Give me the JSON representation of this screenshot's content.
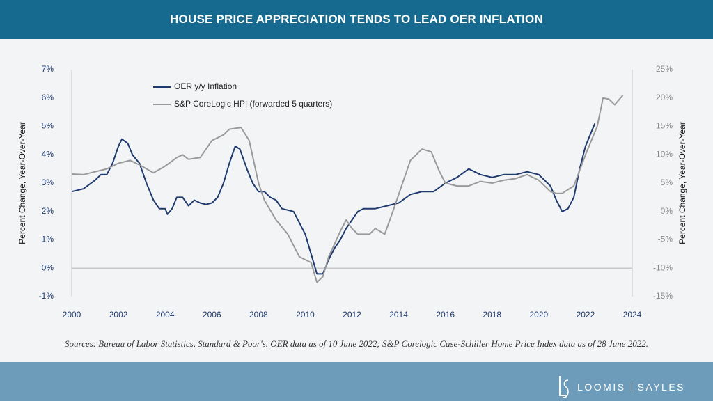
{
  "chart_data": {
    "type": "line",
    "title": "HOUSE PRICE APPRECIATION TENDS TO LEAD OER INFLATION",
    "ylabel": "Percent Change, Year-Over-Year",
    "y2label": "Percent Change, Year-Over-Year",
    "xlim": [
      2000,
      2024
    ],
    "xticks": [
      2000,
      2002,
      2004,
      2006,
      2008,
      2010,
      2012,
      2014,
      2016,
      2018,
      2020,
      2022,
      2024
    ],
    "ylim": [
      -1,
      7
    ],
    "yticks": [
      {
        "value": -1,
        "label": "-1%"
      },
      {
        "value": 0,
        "label": "0%"
      },
      {
        "value": 1,
        "label": "1%"
      },
      {
        "value": 2,
        "label": "2%"
      },
      {
        "value": 3,
        "label": "3%"
      },
      {
        "value": 4,
        "label": "4%"
      },
      {
        "value": 5,
        "label": "5%"
      },
      {
        "value": 6,
        "label": "6%"
      },
      {
        "value": 7,
        "label": "7%"
      }
    ],
    "y2lim": [
      -15,
      25
    ],
    "y2ticks": [
      {
        "value": -15,
        "label": "-15%"
      },
      {
        "value": -10,
        "label": "-10%"
      },
      {
        "value": -5,
        "label": "-5%"
      },
      {
        "value": 0,
        "label": "0%"
      },
      {
        "value": 5,
        "label": "5%"
      },
      {
        "value": 10,
        "label": "10%"
      },
      {
        "value": 15,
        "label": "15%"
      },
      {
        "value": 20,
        "label": "20%"
      },
      {
        "value": 25,
        "label": "25%"
      }
    ],
    "zero_line": true,
    "grid": false,
    "legend": "top-left",
    "series": [
      {
        "name": "OER y/y Inflation",
        "color": "#1f3a6e",
        "axis": "y",
        "x": [
          2000,
          2000.5,
          2001,
          2001.25,
          2001.5,
          2001.75,
          2002,
          2002.15,
          2002.4,
          2002.6,
          2002.9,
          2003.2,
          2003.5,
          2003.75,
          2004,
          2004.1,
          2004.3,
          2004.5,
          2004.75,
          2005,
          2005.25,
          2005.5,
          2005.75,
          2006,
          2006.25,
          2006.5,
          2006.75,
          2007,
          2007.2,
          2007.5,
          2007.75,
          2008,
          2008.25,
          2008.5,
          2008.75,
          2009,
          2009.5,
          2009.75,
          2010,
          2010.25,
          2010.5,
          2010.75,
          2011,
          2011.25,
          2011.5,
          2011.75,
          2012,
          2012.25,
          2012.5,
          2013,
          2013.5,
          2014,
          2014.5,
          2015,
          2015.5,
          2016,
          2016.5,
          2017,
          2017.5,
          2018,
          2018.5,
          2019,
          2019.5,
          2020,
          2020.5,
          2020.75,
          2021,
          2021.25,
          2021.5,
          2021.75,
          2022,
          2022.4
        ],
        "values": [
          2.7,
          2.8,
          3.1,
          3.3,
          3.3,
          3.7,
          4.3,
          4.55,
          4.4,
          4.0,
          3.7,
          3.0,
          2.4,
          2.1,
          2.1,
          1.9,
          2.1,
          2.5,
          2.5,
          2.2,
          2.4,
          2.3,
          2.25,
          2.3,
          2.5,
          3.0,
          3.7,
          4.3,
          4.2,
          3.5,
          3.0,
          2.7,
          2.7,
          2.5,
          2.4,
          2.1,
          2.0,
          1.6,
          1.2,
          0.5,
          -0.2,
          -0.2,
          0.3,
          0.7,
          1.0,
          1.4,
          1.7,
          2.0,
          2.1,
          2.1,
          2.2,
          2.3,
          2.6,
          2.7,
          2.7,
          3.0,
          3.2,
          3.5,
          3.3,
          3.2,
          3.3,
          3.3,
          3.4,
          3.3,
          2.9,
          2.4,
          2.0,
          2.1,
          2.5,
          3.5,
          4.3,
          5.1
        ]
      },
      {
        "name": "S&P CoreLogic HPI (forwarded 5 quarters)",
        "color": "#9a9a9a",
        "axis": "y2",
        "x": [
          2000,
          2000.5,
          2001,
          2001.5,
          2002,
          2002.5,
          2003,
          2003.5,
          2004,
          2004.5,
          2004.75,
          2005,
          2005.5,
          2006,
          2006.5,
          2006.75,
          2007.25,
          2007.6,
          2008,
          2008.25,
          2008.75,
          2009.25,
          2009.75,
          2010.25,
          2010.5,
          2010.75,
          2011,
          2011.5,
          2011.75,
          2012,
          2012.25,
          2012.75,
          2013,
          2013.4,
          2013.75,
          2014.25,
          2014.5,
          2014.75,
          2015,
          2015.4,
          2015.75,
          2016,
          2016.5,
          2017,
          2017.5,
          2018,
          2018.5,
          2019,
          2019.5,
          2020,
          2020.5,
          2020.75,
          2021,
          2021.5,
          2022,
          2022.5,
          2022.75,
          2023,
          2023.25,
          2023.6
        ],
        "values": [
          6.6,
          6.5,
          7.0,
          7.5,
          8.5,
          9.0,
          8.0,
          6.8,
          8.0,
          9.5,
          10.0,
          9.2,
          9.5,
          12.5,
          13.5,
          14.5,
          14.8,
          12.5,
          5.0,
          2.0,
          -1.5,
          -4.0,
          -8.0,
          -9.0,
          -12.5,
          -11.5,
          -8.0,
          -3.5,
          -1.5,
          -3.0,
          -4.0,
          -4.0,
          -3.0,
          -4.0,
          0,
          6.0,
          9.0,
          10.0,
          11.0,
          10.5,
          7.0,
          5.0,
          4.5,
          4.5,
          5.3,
          5.0,
          5.5,
          5.8,
          6.5,
          5.5,
          3.5,
          3.2,
          3.2,
          4.5,
          10.0,
          15.0,
          20.0,
          19.8,
          18.8,
          20.5
        ]
      }
    ]
  },
  "sources": "Sources: Bureau of Labor Statistics, Standard & Poor's. OER data as of 10 June 2022; S&P Corelogic Case-Schiller Home Price Index data as of 28 June 2022.",
  "logo": {
    "left": "LOOMIS",
    "right": "SAYLES"
  }
}
